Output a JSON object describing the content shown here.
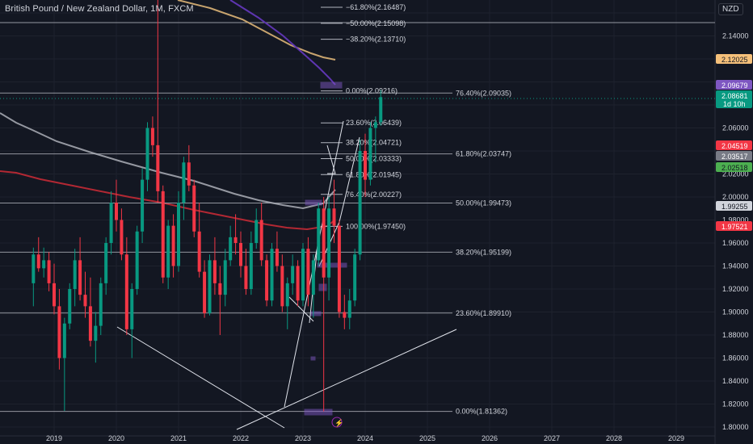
{
  "header": {
    "title": "British Pound / New Zealand Dollar, 1M, FXCM",
    "currency": "NZD"
  },
  "chart_data": {
    "type": "candlestick",
    "symbol": "GBPNZD",
    "timeframe": "1M",
    "ylim": [
      1.8,
      2.19
    ],
    "y_ticks": [
      "1.80000",
      "1.82000",
      "1.84000",
      "1.86000",
      "1.88000",
      "1.90000",
      "1.92000",
      "1.94000",
      "1.96000",
      "1.98000",
      "2.00000",
      "2.02000",
      "2.06000",
      "2.14000"
    ],
    "x_ticks": [
      "2019",
      "2020",
      "2021",
      "2022",
      "2023",
      "2024",
      "2025",
      "2026",
      "2027",
      "2028",
      "2029"
    ],
    "candles": [
      {
        "o": 1.925,
        "h": 1.956,
        "l": 1.905,
        "c": 1.95
      },
      {
        "o": 1.95,
        "h": 1.965,
        "l": 1.935,
        "c": 1.938
      },
      {
        "o": 1.938,
        "h": 1.956,
        "l": 1.93,
        "c": 1.945
      },
      {
        "o": 1.945,
        "h": 1.952,
        "l": 1.918,
        "c": 1.925
      },
      {
        "o": 1.925,
        "h": 1.942,
        "l": 1.898,
        "c": 1.905
      },
      {
        "o": 1.905,
        "h": 1.92,
        "l": 1.85,
        "c": 1.86
      },
      {
        "o": 1.86,
        "h": 1.895,
        "l": 1.814,
        "c": 1.89
      },
      {
        "o": 1.89,
        "h": 1.925,
        "l": 1.885,
        "c": 1.92
      },
      {
        "o": 1.92,
        "h": 1.955,
        "l": 1.905,
        "c": 1.945
      },
      {
        "o": 1.945,
        "h": 1.965,
        "l": 1.91,
        "c": 1.915
      },
      {
        "o": 1.915,
        "h": 1.935,
        "l": 1.895,
        "c": 1.905
      },
      {
        "o": 1.905,
        "h": 1.93,
        "l": 1.87,
        "c": 1.875
      },
      {
        "o": 1.875,
        "h": 1.9,
        "l": 1.856,
        "c": 1.888
      },
      {
        "o": 1.888,
        "h": 1.93,
        "l": 1.88,
        "c": 1.925
      },
      {
        "o": 1.925,
        "h": 1.965,
        "l": 1.915,
        "c": 1.96
      },
      {
        "o": 1.96,
        "h": 2.005,
        "l": 1.95,
        "c": 1.995
      },
      {
        "o": 1.995,
        "h": 2.015,
        "l": 1.97,
        "c": 1.98
      },
      {
        "o": 1.98,
        "h": 1.99,
        "l": 1.945,
        "c": 1.95
      },
      {
        "o": 1.95,
        "h": 1.965,
        "l": 1.88,
        "c": 1.885
      },
      {
        "o": 1.885,
        "h": 1.925,
        "l": 1.86,
        "c": 1.92
      },
      {
        "o": 1.92,
        "h": 1.975,
        "l": 1.915,
        "c": 1.97
      },
      {
        "o": 1.97,
        "h": 2.025,
        "l": 1.96,
        "c": 2.015
      },
      {
        "o": 2.015,
        "h": 2.065,
        "l": 2.005,
        "c": 2.06
      },
      {
        "o": 2.06,
        "h": 2.07,
        "l": 2.035,
        "c": 2.045
      },
      {
        "o": 2.045,
        "h": 2.2,
        "l": 1.995,
        "c": 2.005
      },
      {
        "o": 2.005,
        "h": 2.01,
        "l": 1.925,
        "c": 1.93
      },
      {
        "o": 1.93,
        "h": 1.98,
        "l": 1.92,
        "c": 1.975
      },
      {
        "o": 1.975,
        "h": 1.985,
        "l": 1.93,
        "c": 1.94
      },
      {
        "o": 1.94,
        "h": 2.005,
        "l": 1.935,
        "c": 1.995
      },
      {
        "o": 1.995,
        "h": 2.035,
        "l": 1.98,
        "c": 2.03
      },
      {
        "o": 2.03,
        "h": 2.045,
        "l": 2.005,
        "c": 2.01
      },
      {
        "o": 2.01,
        "h": 2.015,
        "l": 1.965,
        "c": 1.97
      },
      {
        "o": 1.97,
        "h": 1.995,
        "l": 1.93,
        "c": 1.935
      },
      {
        "o": 1.935,
        "h": 1.945,
        "l": 1.895,
        "c": 1.899
      },
      {
        "o": 1.899,
        "h": 1.95,
        "l": 1.897,
        "c": 1.945
      },
      {
        "o": 1.945,
        "h": 1.965,
        "l": 1.915,
        "c": 1.925
      },
      {
        "o": 1.925,
        "h": 1.94,
        "l": 1.88,
        "c": 1.915
      },
      {
        "o": 1.915,
        "h": 1.955,
        "l": 1.905,
        "c": 1.945
      },
      {
        "o": 1.945,
        "h": 1.975,
        "l": 1.94,
        "c": 1.965
      },
      {
        "o": 1.965,
        "h": 1.985,
        "l": 1.95,
        "c": 1.96
      },
      {
        "o": 1.96,
        "h": 1.97,
        "l": 1.93,
        "c": 1.94
      },
      {
        "o": 1.94,
        "h": 1.955,
        "l": 1.915,
        "c": 1.92
      },
      {
        "o": 1.92,
        "h": 1.97,
        "l": 1.915,
        "c": 1.96
      },
      {
        "o": 1.96,
        "h": 1.99,
        "l": 1.955,
        "c": 1.98
      },
      {
        "o": 1.98,
        "h": 1.995,
        "l": 1.94,
        "c": 1.945
      },
      {
        "o": 1.945,
        "h": 1.95,
        "l": 1.905,
        "c": 1.91
      },
      {
        "o": 1.91,
        "h": 1.96,
        "l": 1.905,
        "c": 1.955
      },
      {
        "o": 1.955,
        "h": 1.97,
        "l": 1.935,
        "c": 1.94
      },
      {
        "o": 1.94,
        "h": 1.95,
        "l": 1.9,
        "c": 1.905
      },
      {
        "o": 1.905,
        "h": 1.93,
        "l": 1.885,
        "c": 1.925
      },
      {
        "o": 1.925,
        "h": 1.95,
        "l": 1.915,
        "c": 1.94
      },
      {
        "o": 1.94,
        "h": 1.945,
        "l": 1.905,
        "c": 1.91
      },
      {
        "o": 1.91,
        "h": 1.96,
        "l": 1.905,
        "c": 1.955
      },
      {
        "o": 1.955,
        "h": 1.965,
        "l": 1.905,
        "c": 1.915
      },
      {
        "o": 1.915,
        "h": 1.95,
        "l": 1.895,
        "c": 1.945
      },
      {
        "o": 1.945,
        "h": 1.995,
        "l": 1.94,
        "c": 1.99
      },
      {
        "o": 1.99,
        "h": 2.0,
        "l": 1.8136,
        "c": 1.93
      },
      {
        "o": 1.93,
        "h": 2.0,
        "l": 1.91,
        "c": 1.99
      },
      {
        "o": 1.99,
        "h": 2.015,
        "l": 1.96,
        "c": 1.975
      },
      {
        "o": 1.975,
        "h": 1.98,
        "l": 1.895,
        "c": 1.9
      },
      {
        "o": 1.9,
        "h": 1.915,
        "l": 1.885,
        "c": 1.895
      },
      {
        "o": 1.895,
        "h": 1.92,
        "l": 1.885,
        "c": 1.91
      },
      {
        "o": 1.91,
        "h": 1.955,
        "l": 1.905,
        "c": 1.95
      },
      {
        "o": 1.95,
        "h": 2.05,
        "l": 1.945,
        "c": 2.04
      },
      {
        "o": 2.04,
        "h": 2.055,
        "l": 2.0,
        "c": 2.015
      },
      {
        "o": 2.015,
        "h": 2.065,
        "l": 2.01,
        "c": 2.06
      },
      {
        "o": 2.06,
        "h": 2.07,
        "l": 2.03,
        "c": 2.065
      },
      {
        "o": 2.065,
        "h": 2.093,
        "l": 2.062,
        "c": 2.0868
      }
    ],
    "price_labels": [
      {
        "value": "2.12025",
        "color": "#f5c07a",
        "text_color": "#131722"
      },
      {
        "value": "2.09679",
        "color": "#7e57c2",
        "text_color": "#ffffff"
      },
      {
        "value": "2.08681",
        "sub": "1d 10h",
        "color": "#089981",
        "text_color": "#ffffff"
      },
      {
        "value": "2.04519",
        "color": "#f23645",
        "text_color": "#ffffff"
      },
      {
        "value": "2.03517",
        "color": "#787b86",
        "text_color": "#ffffff"
      },
      {
        "value": "2.02518",
        "color": "#4caf50",
        "text_color": "#131722"
      },
      {
        "value": "1.99255",
        "color": "#d1d4dc",
        "text_color": "#131722"
      },
      {
        "value": "1.97521",
        "color": "#f23645",
        "text_color": "#ffffff"
      }
    ],
    "fib_left": [
      {
        "label": "0.00%(2.09216)",
        "price": 2.09216
      },
      {
        "label": "23.60%(2.06439)",
        "price": 2.06439
      },
      {
        "label": "38.20%(2.04721)",
        "price": 2.04721
      },
      {
        "label": "50.00%(2.03333)",
        "price": 2.03333
      },
      {
        "label": "61.80%(2.01945)",
        "price": 2.01945
      },
      {
        "label": "76.40%(2.00227)",
        "price": 2.00227
      },
      {
        "label": "100.00%(1.97450)",
        "price": 1.9745
      }
    ],
    "fib_ext": [
      {
        "label": "−61.80%(2.16487)",
        "price": 2.16487
      },
      {
        "label": "−50.00%(2.15098)",
        "price": 2.15098
      },
      {
        "label": "−38.20%(2.13710)",
        "price": 2.1371
      }
    ],
    "fib_right": [
      {
        "label": "76.40%(2.09035)",
        "price": 2.09035
      },
      {
        "label": "61.80%(2.03747)",
        "price": 2.03747
      },
      {
        "label": "50.00%(1.99473)",
        "price": 1.99473
      },
      {
        "label": "38.20%(1.95199)",
        "price": 1.95199
      },
      {
        "label": "23.60%(1.89910)",
        "price": 1.8991
      },
      {
        "label": "0.00%(1.81362)",
        "price": 1.81362
      }
    ],
    "colors": {
      "up": "#089981",
      "down": "#f23645",
      "background": "#131722",
      "grid": "#1e222d",
      "text": "#d1d4dc",
      "line": "#b2b5be",
      "ma_red": "#b22833",
      "ma_gray": "#9598a1",
      "ma_tan": "#c8a46e",
      "ma_purple": "#5e35b1",
      "box": "#7e57c2"
    }
  }
}
